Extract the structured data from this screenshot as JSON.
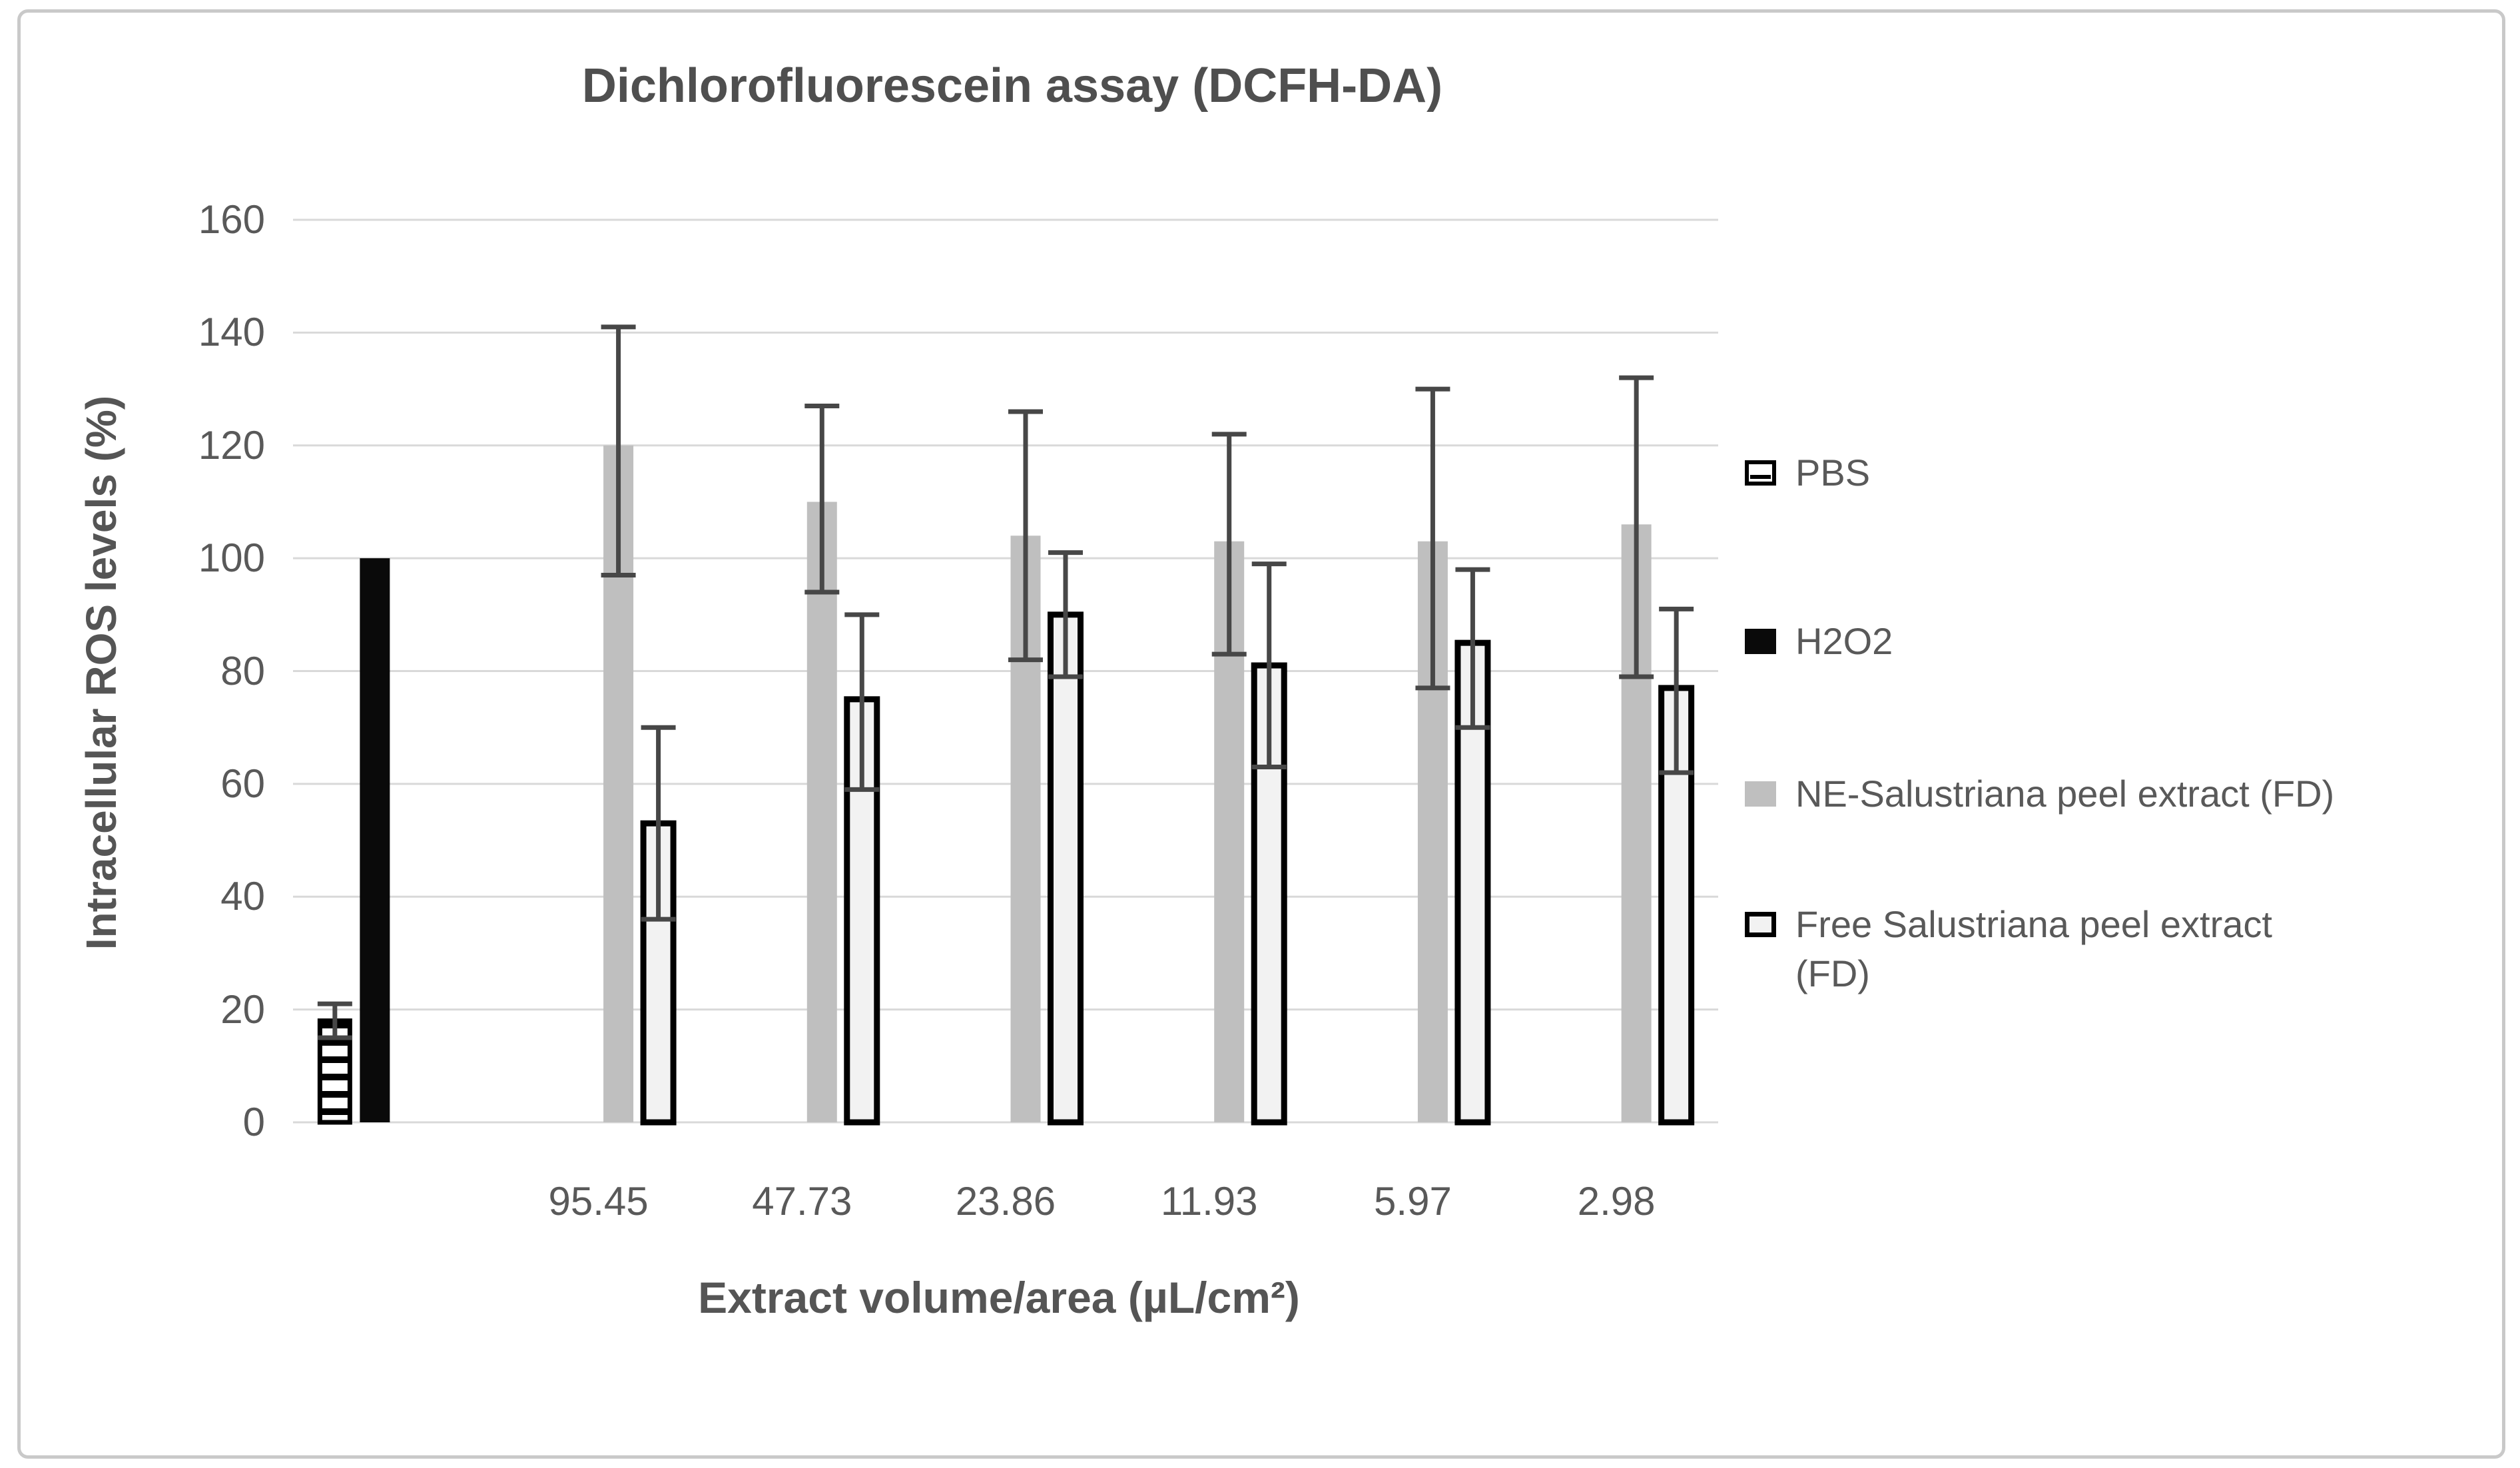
{
  "chart_data": {
    "type": "bar",
    "title": "Dichlorofluorescein assay (DCFH-DA)",
    "xlabel": "Extract volume/area (µL/cm²)",
    "ylabel": "Intracellular ROS levels (%)",
    "ylim": [
      0,
      160
    ],
    "ytick_step": 20,
    "yticks": [
      "0",
      "20",
      "40",
      "60",
      "80",
      "100",
      "120",
      "140",
      "160"
    ],
    "grid": true,
    "legend_position": "right",
    "categories": [
      "",
      "95.45",
      "47.73",
      "23.86",
      "11.93",
      "5.97",
      "2.98"
    ],
    "series": [
      {
        "key": "pbs",
        "name": "PBS",
        "swatch": "striped",
        "legend_lines": [
          "PBS"
        ],
        "values": [
          18,
          null,
          null,
          null,
          null,
          null,
          null
        ],
        "err_low": [
          15,
          null,
          null,
          null,
          null,
          null,
          null
        ],
        "err_high": [
          21,
          null,
          null,
          null,
          null,
          null,
          null
        ]
      },
      {
        "key": "h2o2",
        "name": "H2O2",
        "swatch": "black",
        "legend_lines": [
          "H2O2"
        ],
        "values": [
          100,
          null,
          null,
          null,
          null,
          null,
          null
        ],
        "err_low": [
          null,
          null,
          null,
          null,
          null,
          null,
          null
        ],
        "err_high": [
          null,
          null,
          null,
          null,
          null,
          null,
          null
        ]
      },
      {
        "key": "ne-salustriana",
        "name": "NE-Salustriana peel extract (FD)",
        "swatch": "gray",
        "legend_lines": [
          "NE-Salustriana peel extract (FD)"
        ],
        "values": [
          null,
          120,
          110,
          104,
          103,
          103,
          106
        ],
        "err_low": [
          null,
          97,
          94,
          82,
          83,
          77,
          79
        ],
        "err_high": [
          null,
          141,
          127,
          126,
          122,
          130,
          132
        ]
      },
      {
        "key": "free-salustriana",
        "name": "Free Salustriana peel extract (FD)",
        "swatch": "outlined",
        "legend_lines": [
          "Free Salustriana peel extract",
          "(FD)"
        ],
        "values": [
          null,
          53,
          75,
          90,
          81,
          85,
          77
        ],
        "err_low": [
          null,
          36,
          59,
          79,
          63,
          70,
          62
        ],
        "err_high": [
          null,
          70,
          90,
          101,
          99,
          98,
          91
        ]
      }
    ],
    "colors": {
      "gray_bar": "#bfbfbf",
      "black_bar": "#0a0a0a",
      "outlined_fill": "#f2f2f2",
      "bar_border": "#000000",
      "error_bar": "#474747",
      "gridline": "#d9d9d9",
      "text": "#595959",
      "title_text": "#4f4f4f",
      "frame_border": "#c9c9c9",
      "background": "#ffffff"
    }
  }
}
